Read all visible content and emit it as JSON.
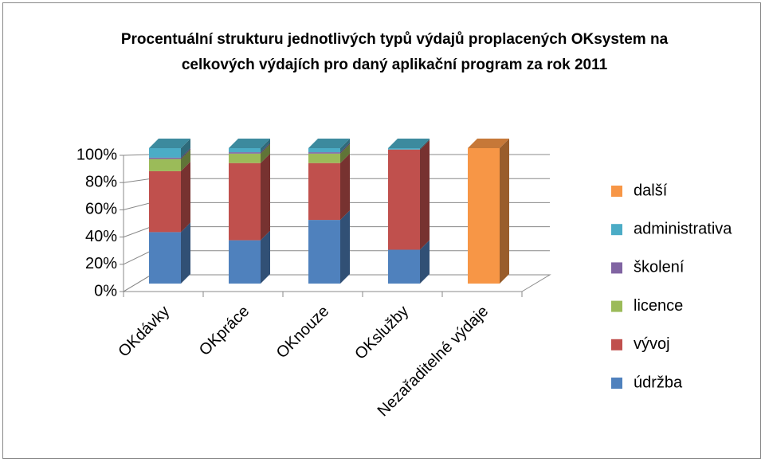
{
  "chart_data": {
    "type": "bar3d_stacked_percent",
    "title": "Procentuální strukturu jednotlivých typů výdajů proplacených OKsystem na celkových výdajích pro daný aplikační program za rok 2011",
    "categories": [
      "OKdávky",
      "OKpráce",
      "OKnouze",
      "OKslužby",
      "Nezařaditelné výdaje"
    ],
    "series": [
      {
        "name": "údržba",
        "color": "#4f81bd",
        "values": [
          38,
          32,
          47,
          25,
          0
        ]
      },
      {
        "name": "vývoj",
        "color": "#c0504d",
        "values": [
          45,
          57,
          42,
          74,
          0
        ]
      },
      {
        "name": "licence",
        "color": "#9bbb59",
        "values": [
          9,
          7,
          7,
          0,
          0
        ]
      },
      {
        "name": "školení",
        "color": "#8064a2",
        "values": [
          1,
          1,
          1,
          0,
          0
        ]
      },
      {
        "name": "administrativa",
        "color": "#4bacc6",
        "values": [
          7,
          3,
          3,
          1,
          0
        ]
      },
      {
        "name": "další",
        "color": "#f79646",
        "values": [
          0,
          0,
          0,
          0,
          100
        ]
      }
    ],
    "ylim": [
      0,
      100
    ],
    "yticks": [
      {
        "value": 0,
        "label": "0%"
      },
      {
        "value": 20,
        "label": "20%"
      },
      {
        "value": 40,
        "label": "40%"
      },
      {
        "value": 60,
        "label": "60%"
      },
      {
        "value": 80,
        "label": "80%"
      },
      {
        "value": 100,
        "label": "100%"
      }
    ],
    "grid": true,
    "legend": "right"
  }
}
